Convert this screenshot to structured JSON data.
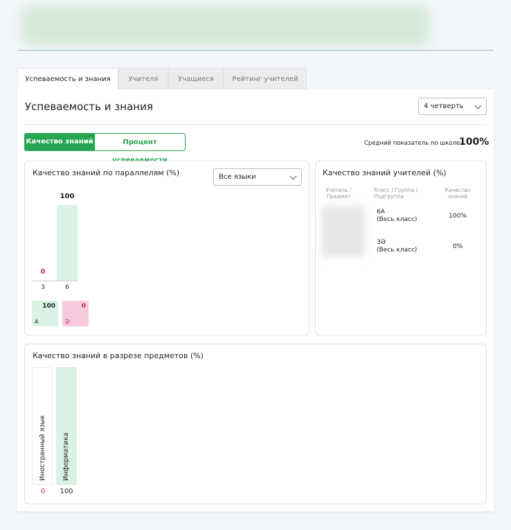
{
  "tabs": [
    "Успеваемость и знания",
    "Учителя",
    "Учащиеся",
    "Рейтинг учителей"
  ],
  "section_title": "Успеваемость и знания",
  "quarter_select": "4 четверть",
  "toggle": [
    "Качество знаний",
    "Процент успеваемости"
  ],
  "school_average": {
    "label": "Средний показатель по школе:",
    "value": "100%"
  },
  "parallels": {
    "title": "Качество знаний по параллелям (%)",
    "language_select": "Все языки",
    "categories": [
      "3",
      "6"
    ],
    "values": [
      0,
      100
    ],
    "languages": [
      {
        "name": "А",
        "value": 100
      },
      {
        "name": "Ә",
        "value": 0
      }
    ]
  },
  "teachers": {
    "title": "Качество знаний учителей (%)",
    "columns": [
      "Учитель / Предмет",
      "Класс / Группа / Подгруппа",
      "Качество знаний"
    ],
    "rows": [
      {
        "class": "6А",
        "group": "(Весь класс)",
        "quality": "100%"
      },
      {
        "class": "3Ә",
        "group": "(Весь класс)",
        "quality": "0%"
      }
    ]
  },
  "subjects": {
    "title": "Качество знаний в разрезе предметов (%)",
    "categories": [
      "Иностранный язык",
      "Информатика"
    ],
    "values": [
      0,
      100
    ]
  }
}
